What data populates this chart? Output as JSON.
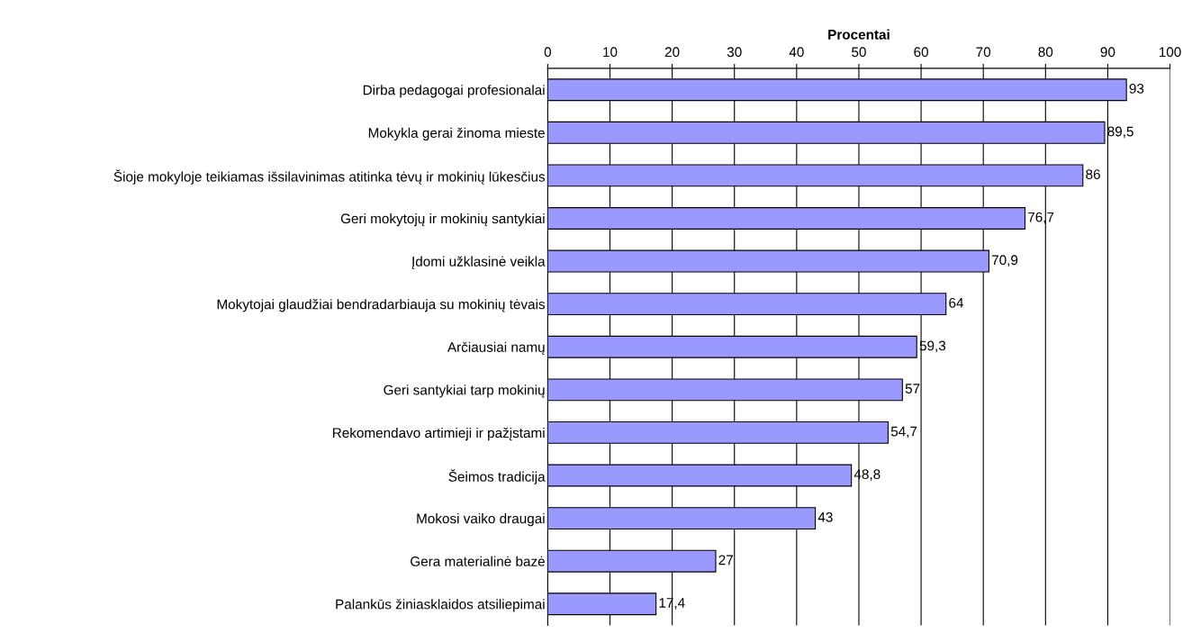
{
  "chart_data": {
    "type": "bar",
    "orientation": "horizontal",
    "xlabel": "Procentai",
    "categories": [
      "Dirba pedagogai profesionalai",
      "Mokykla gerai žinoma mieste",
      "Šioje mokyloje teikiamas išsilavinimas atitinka tėvų ir mokinių lūkesčius",
      "Geri mokytojų ir mokinių santykiai",
      "Įdomi užklasinė veikla",
      "Mokytojai glaudžiai bendradarbiauja su mokinių tėvais",
      "Arčiausiai namų",
      "Geri santykiai tarp mokinių",
      "Rekomendavo artimieji ir pažįstami",
      "Šeimos tradicija",
      "Mokosi vaiko draugai",
      "Gera materialinė bazė",
      "Palankūs žiniasklaidos atsiliepimai"
    ],
    "values": [
      93,
      89.5,
      86,
      76.7,
      70.9,
      64,
      59.3,
      57,
      54.7,
      48.8,
      43,
      27,
      17.4
    ],
    "value_labels": [
      "93",
      "89,5",
      "86",
      "76,7",
      "70,9",
      "64",
      "59,3",
      "57",
      "54,7",
      "48,8",
      "43",
      "27",
      "17,4"
    ],
    "color": "#9999ff",
    "xlim": [
      0,
      100
    ],
    "xticks": [
      0,
      10,
      20,
      30,
      40,
      50,
      60,
      70,
      80,
      90,
      100
    ],
    "grid": "x",
    "legend": false
  }
}
